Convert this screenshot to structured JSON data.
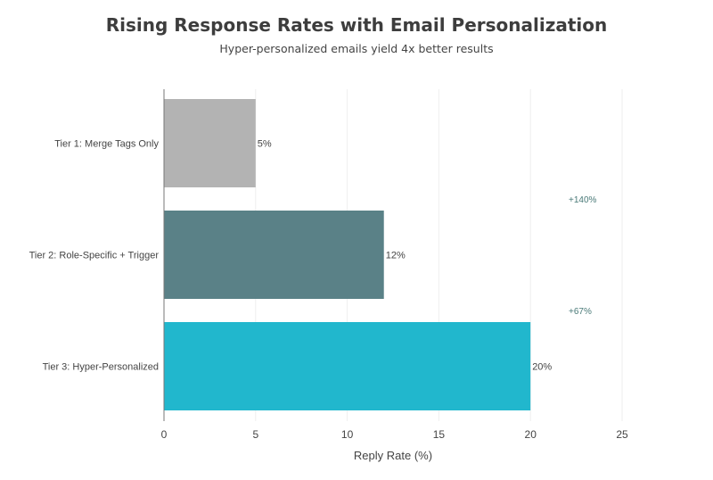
{
  "chart_data": {
    "type": "bar",
    "orientation": "horizontal",
    "title": "Rising Response Rates with Email Personalization",
    "subtitle": "Hyper-personalized emails yield 4x better results",
    "xlabel": "Reply Rate (%)",
    "ylabel": "",
    "xlim": [
      0,
      25
    ],
    "xticks": [
      "0",
      "5",
      "10",
      "15",
      "20",
      "25"
    ],
    "grid": "vertical",
    "categories": [
      "Tier 1: Merge Tags Only",
      "Tier 2: Role-Specific + Trigger",
      "Tier 3: Hyper-Personalized"
    ],
    "values": [
      5,
      12,
      20
    ],
    "data_labels": [
      "5%",
      "12%",
      "20%"
    ],
    "colors": [
      "#b3b3b3",
      "#5a8187",
      "#21b7cd"
    ],
    "annotations": [
      {
        "text": "+140%",
        "between": [
          "Tier 1: Merge Tags Only",
          "Tier 2: Role-Specific + Trigger"
        ],
        "color": "#4a7a78"
      },
      {
        "text": "+67%",
        "between": [
          "Tier 2: Role-Specific + Trigger",
          "Tier 3: Hyper-Personalized"
        ],
        "color": "#4a7a78"
      }
    ]
  }
}
